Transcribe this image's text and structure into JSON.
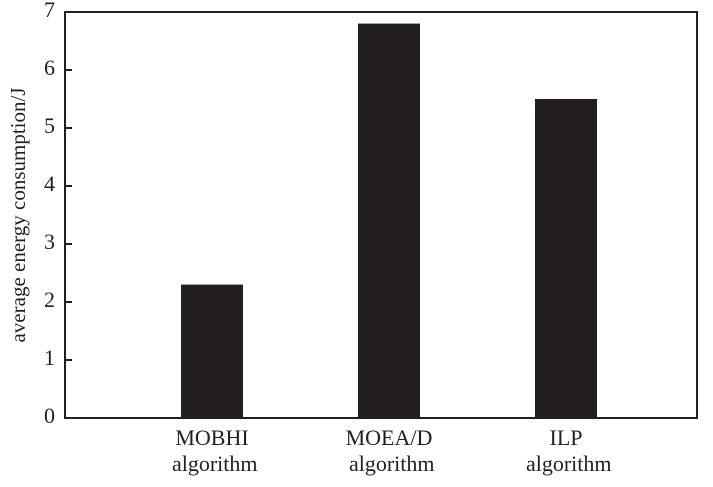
{
  "chart_data": {
    "type": "bar",
    "y_label": "average energy consumption/J",
    "categories": [
      "MOBHI algorithm",
      "MOEA/D algorithm",
      "ILP algorithm"
    ],
    "values": [
      2.3,
      6.8,
      5.5
    ],
    "color": "#231f20",
    "ylim": [
      0,
      7
    ],
    "yticks": [
      0,
      1,
      2,
      3,
      4,
      5,
      6,
      7
    ],
    "grid": false
  }
}
